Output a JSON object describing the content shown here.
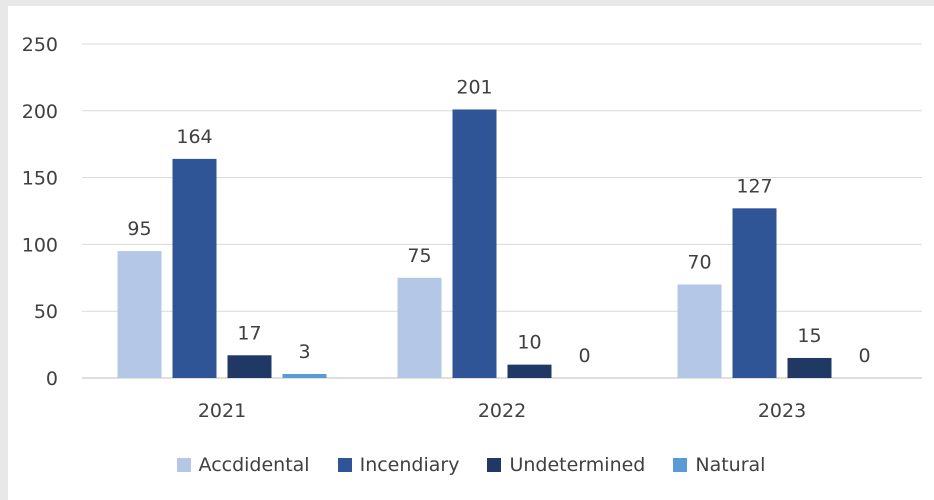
{
  "chart_data": {
    "type": "bar",
    "title": "",
    "xlabel": "",
    "ylabel": "",
    "categories": [
      "2021",
      "2022",
      "2023"
    ],
    "ylim": [
      0,
      250
    ],
    "yticks": [
      0,
      50,
      100,
      150,
      200,
      250
    ],
    "grid": true,
    "legend_position": "bottom",
    "data_labels": true,
    "series": [
      {
        "name": "Accdidental",
        "color": "#b4c7e7",
        "values": [
          95,
          75,
          70
        ]
      },
      {
        "name": "Incendiary",
        "color": "#2f5597",
        "values": [
          164,
          201,
          127
        ]
      },
      {
        "name": "Undetermined",
        "color": "#1f3864",
        "values": [
          17,
          10,
          15
        ]
      },
      {
        "name": "Natural",
        "color": "#5b9bd5",
        "values": [
          3,
          0,
          0
        ]
      }
    ]
  }
}
